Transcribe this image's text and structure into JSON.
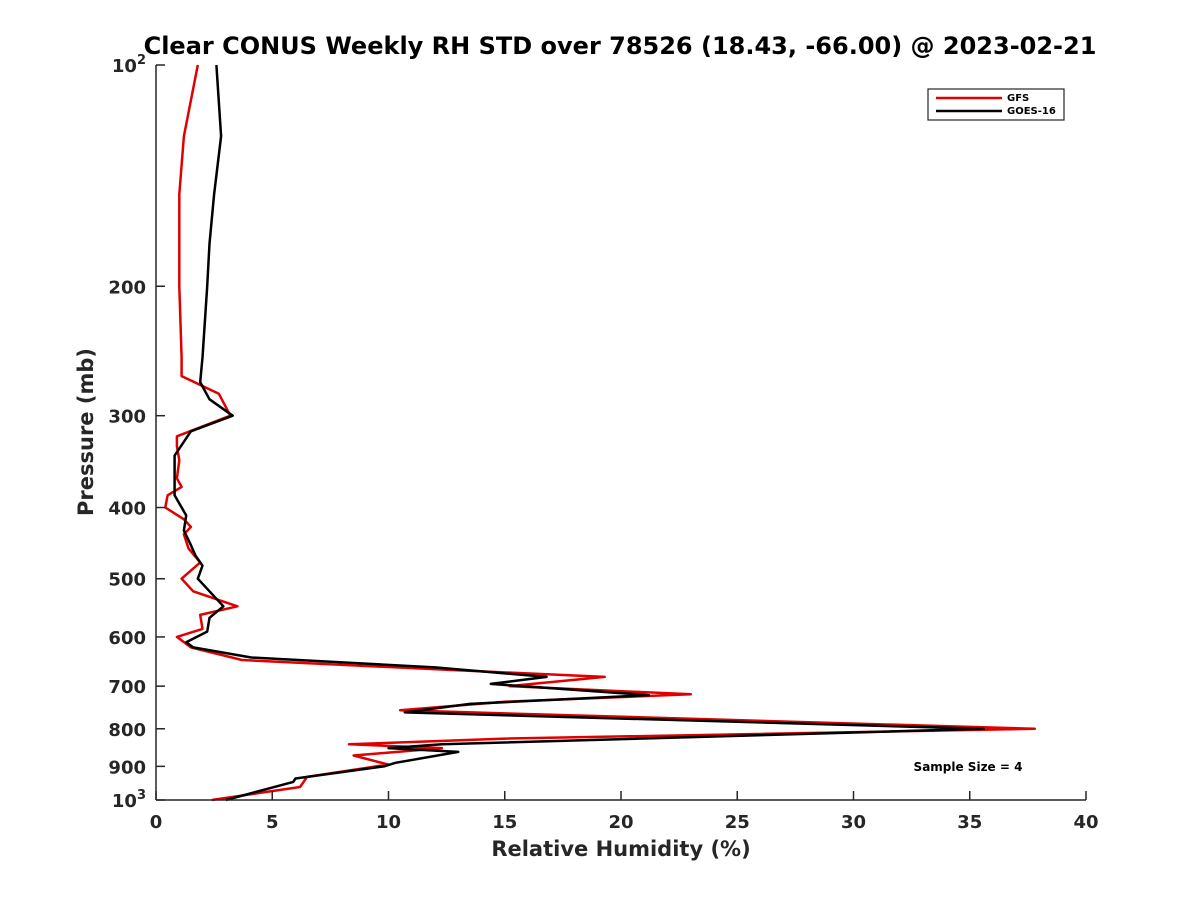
{
  "chart_data": {
    "type": "line",
    "title": "Clear CONUS Weekly RH STD over 78526 (18.43, -66.00) @ 2023-02-21",
    "xlabel": "Relative Humidity (%)",
    "ylabel": "Pressure (mb)",
    "xlim": [
      0,
      40
    ],
    "ylim": [
      100,
      1000
    ],
    "y_scale": "log",
    "y_reversed": true,
    "grid": false,
    "legend_position": "top-right",
    "x_ticks": [
      0,
      5,
      10,
      15,
      20,
      25,
      30,
      35,
      40
    ],
    "y_ticks": [
      {
        "value": 100,
        "base": "10",
        "exp": "2"
      },
      {
        "value": 200,
        "label": "200"
      },
      {
        "value": 300,
        "label": "300"
      },
      {
        "value": 400,
        "label": "400"
      },
      {
        "value": 500,
        "label": "500"
      },
      {
        "value": 600,
        "label": "600"
      },
      {
        "value": 700,
        "label": "700"
      },
      {
        "value": 800,
        "label": "800"
      },
      {
        "value": 900,
        "label": "900"
      },
      {
        "value": 1000,
        "base": "10",
        "exp": "3"
      }
    ],
    "annotation": "Sample Size = 4",
    "series": [
      {
        "name": "GFS",
        "color": "#e00000",
        "points": [
          [
            1.8,
            100
          ],
          [
            1.2,
            125
          ],
          [
            1.0,
            150
          ],
          [
            1.0,
            175
          ],
          [
            1.0,
            200
          ],
          [
            1.1,
            250
          ],
          [
            1.1,
            265
          ],
          [
            2.7,
            280
          ],
          [
            3.2,
            300
          ],
          [
            0.9,
            320
          ],
          [
            0.9,
            330
          ],
          [
            1.0,
            345
          ],
          [
            0.9,
            365
          ],
          [
            1.1,
            375
          ],
          [
            0.5,
            385
          ],
          [
            0.4,
            400
          ],
          [
            1.2,
            415
          ],
          [
            1.5,
            425
          ],
          [
            1.2,
            435
          ],
          [
            1.4,
            455
          ],
          [
            1.9,
            475
          ],
          [
            1.1,
            500
          ],
          [
            1.6,
            520
          ],
          [
            3.5,
            545
          ],
          [
            1.9,
            560
          ],
          [
            2.0,
            585
          ],
          [
            0.9,
            600
          ],
          [
            1.5,
            620
          ],
          [
            3.7,
            645
          ],
          [
            12.5,
            665
          ],
          [
            19.3,
            680
          ],
          [
            15.2,
            700
          ],
          [
            23.0,
            718
          ],
          [
            15.0,
            735
          ],
          [
            10.5,
            755
          ],
          [
            37.8,
            800
          ],
          [
            15.0,
            825
          ],
          [
            8.3,
            840
          ],
          [
            12.3,
            850
          ],
          [
            8.5,
            870
          ],
          [
            10.0,
            895
          ],
          [
            6.5,
            930
          ],
          [
            6.2,
            960
          ],
          [
            2.4,
            1000
          ]
        ]
      },
      {
        "name": "GOES-16",
        "color": "#000000",
        "points": [
          [
            2.6,
            100
          ],
          [
            2.8,
            125
          ],
          [
            2.5,
            150
          ],
          [
            2.3,
            175
          ],
          [
            2.2,
            200
          ],
          [
            2.0,
            250
          ],
          [
            1.9,
            270
          ],
          [
            2.3,
            285
          ],
          [
            3.3,
            300
          ],
          [
            1.5,
            315
          ],
          [
            0.8,
            340
          ],
          [
            0.8,
            360
          ],
          [
            0.8,
            385
          ],
          [
            1.3,
            410
          ],
          [
            1.2,
            430
          ],
          [
            1.5,
            450
          ],
          [
            1.7,
            465
          ],
          [
            2.0,
            480
          ],
          [
            1.8,
            500
          ],
          [
            2.3,
            520
          ],
          [
            2.9,
            545
          ],
          [
            2.3,
            565
          ],
          [
            2.2,
            590
          ],
          [
            1.3,
            610
          ],
          [
            1.6,
            620
          ],
          [
            4.1,
            640
          ],
          [
            12.0,
            660
          ],
          [
            16.8,
            680
          ],
          [
            14.4,
            695
          ],
          [
            21.2,
            720
          ],
          [
            13.5,
            740
          ],
          [
            10.7,
            760
          ],
          [
            35.6,
            800
          ],
          [
            12.3,
            840
          ],
          [
            10.0,
            850
          ],
          [
            13.0,
            860
          ],
          [
            10.3,
            890
          ],
          [
            9.8,
            900
          ],
          [
            6.0,
            935
          ],
          [
            5.9,
            945
          ],
          [
            3.0,
            1000
          ]
        ]
      }
    ]
  }
}
